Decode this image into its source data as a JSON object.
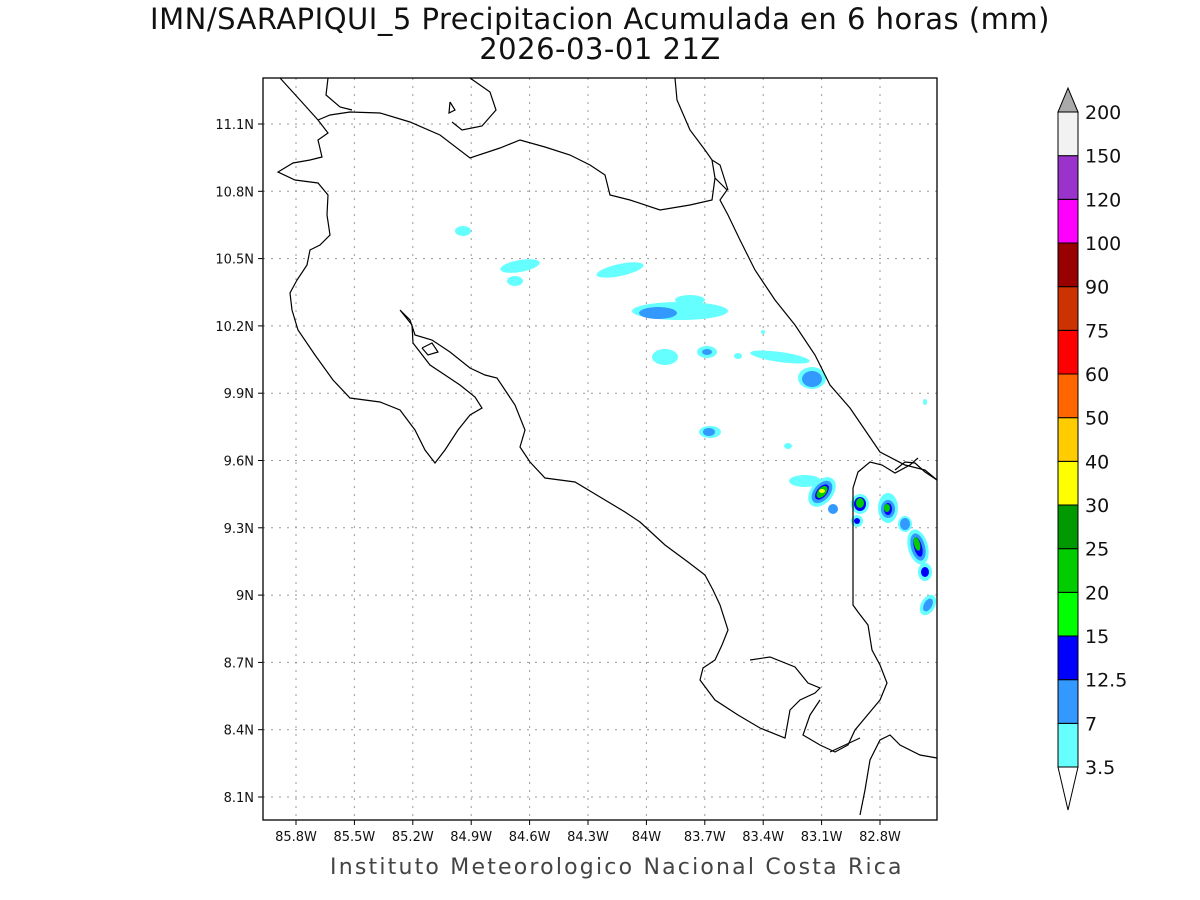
{
  "title": {
    "line1": "IMN/SARAPIQUI_5 Precipitacion Acumulada en 6 horas (mm)",
    "line2": "2026-03-01 21Z"
  },
  "footer": "Instituto Meteorologico Nacional Costa Rica",
  "map": {
    "lon_ticks": [
      "85.8W",
      "85.5W",
      "85.2W",
      "84.9W",
      "84.6W",
      "84.3W",
      "84W",
      "83.7W",
      "83.4W",
      "83.1W",
      "82.8W"
    ],
    "lat_ticks": [
      "11.1N",
      "10.8N",
      "10.5N",
      "10.2N",
      "9.9N",
      "9.6N",
      "9.3N",
      "9N",
      "8.7N",
      "8.4N",
      "8.1N"
    ],
    "units": "mm"
  },
  "legend": {
    "levels": [
      "3.5",
      "7",
      "12.5",
      "15",
      "20",
      "25",
      "30",
      "40",
      "50",
      "60",
      "75",
      "90",
      "100",
      "120",
      "150",
      "200"
    ],
    "colors": [
      "#66ffff",
      "#3399ff",
      "#0000ff",
      "#00ff00",
      "#00cc00",
      "#009900",
      "#ffff00",
      "#ffcc00",
      "#ff6600",
      "#ff0000",
      "#cc3300",
      "#990000",
      "#ff00ff",
      "#9933cc",
      "#f2f2f2"
    ],
    "over_color": "#aaaaaa",
    "under_color": "#ffffff"
  }
}
